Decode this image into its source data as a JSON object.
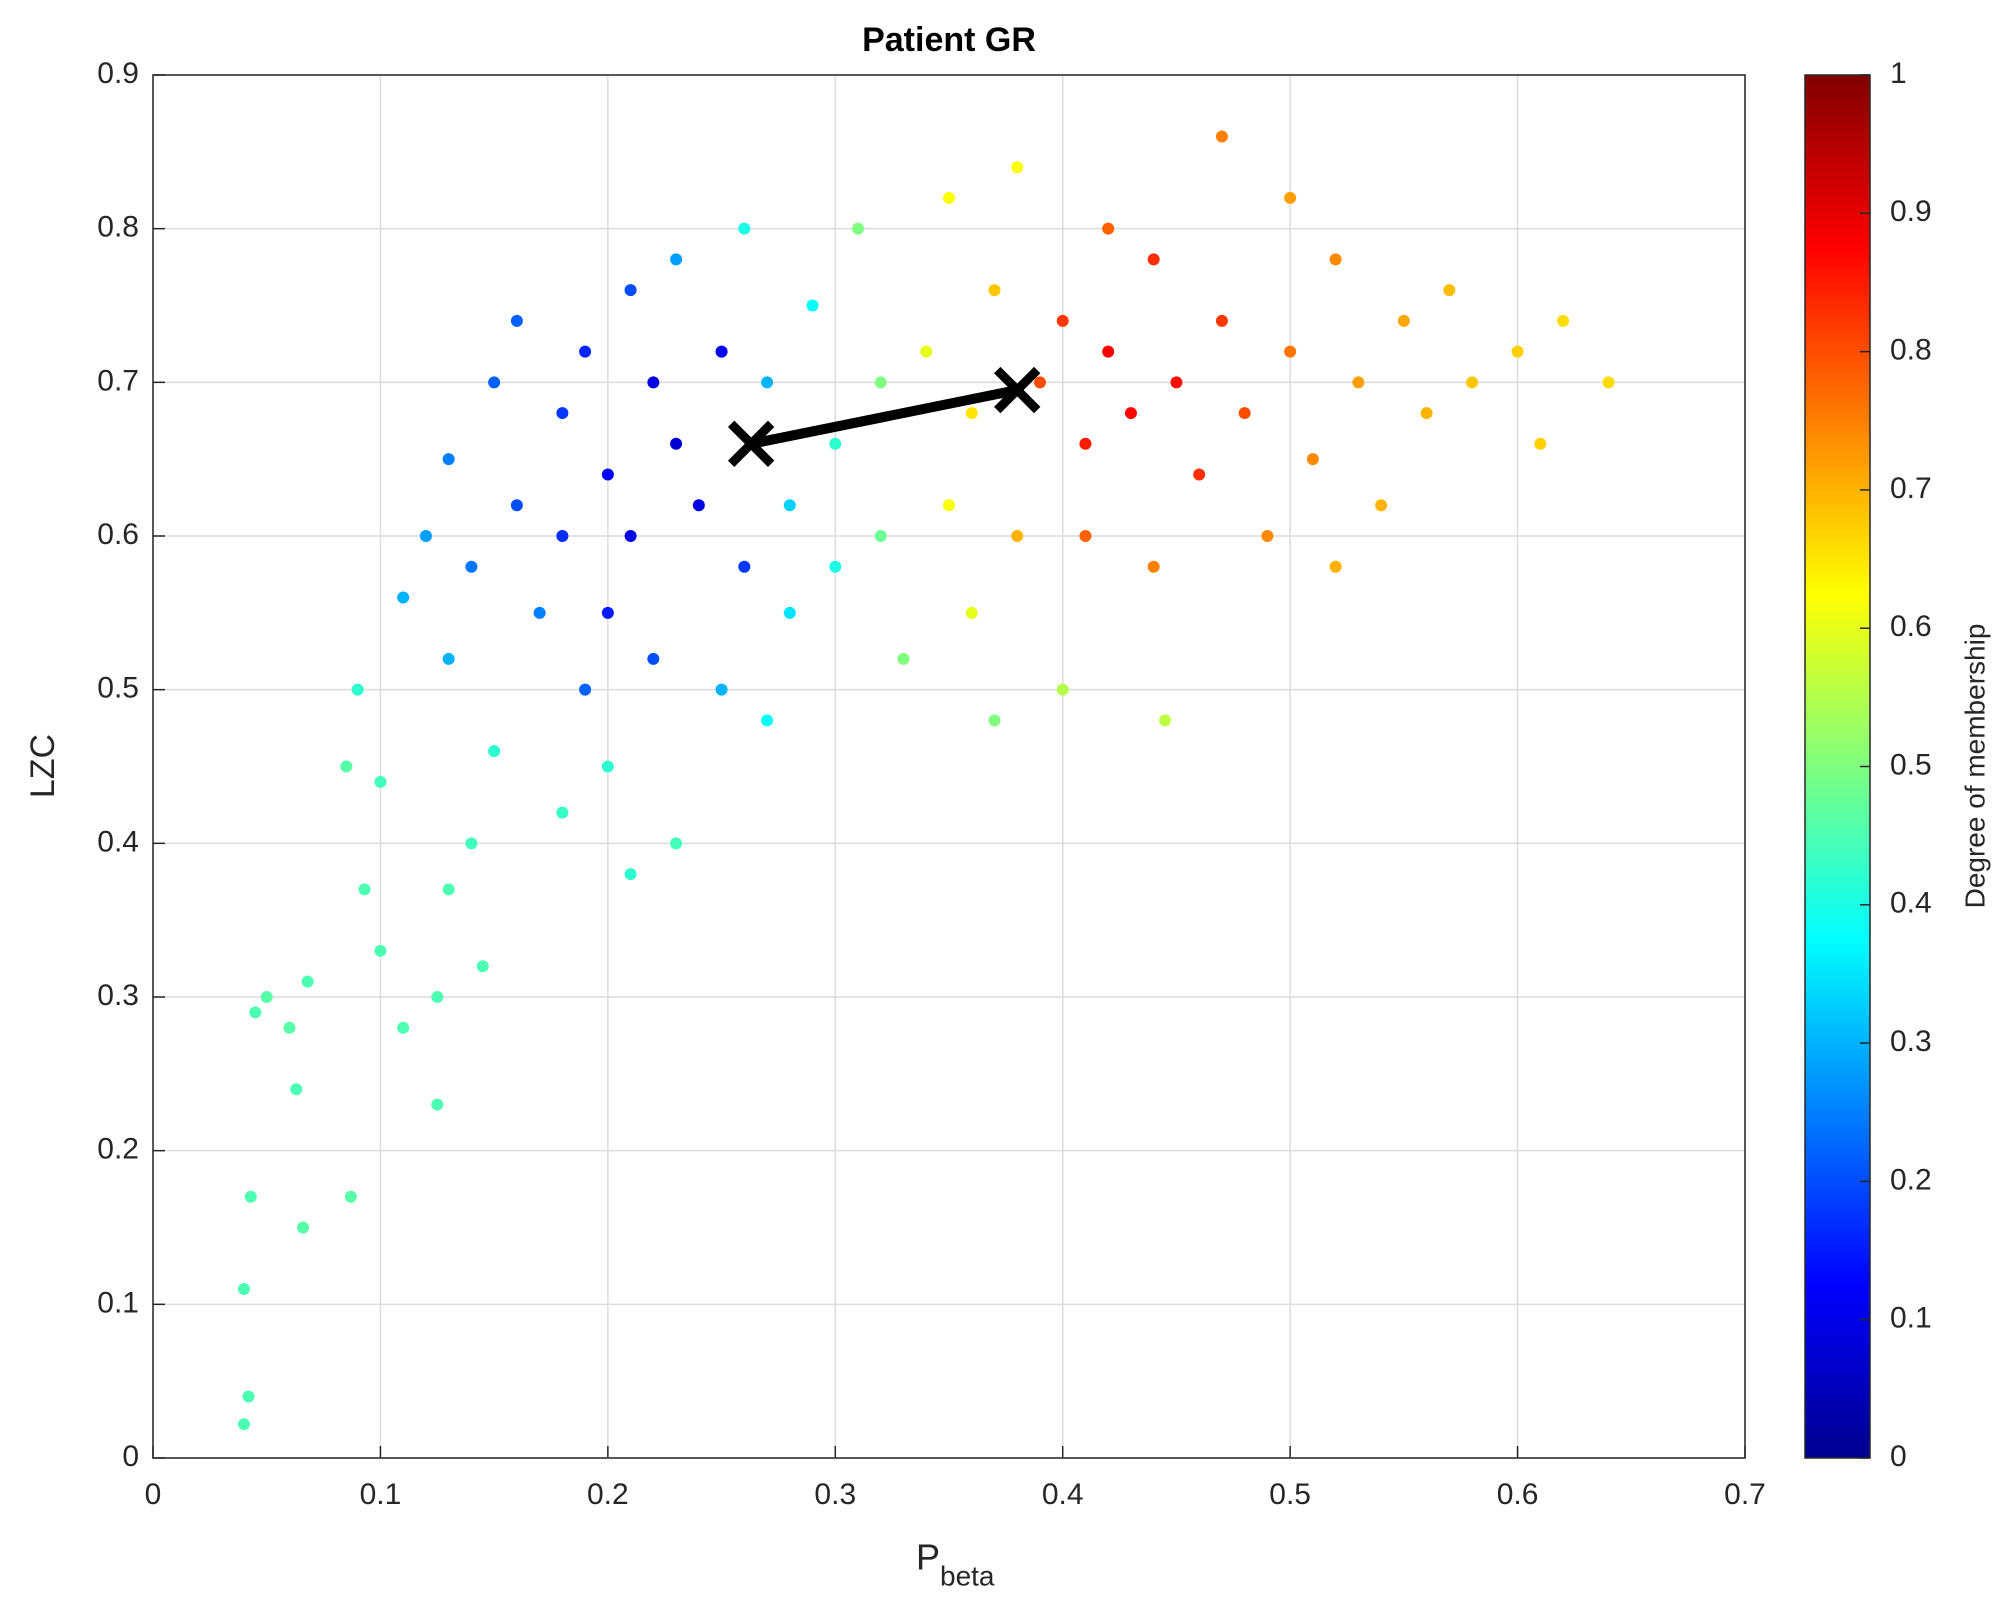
{
  "chart_data": {
    "type": "scatter",
    "title": "Patient GR",
    "x_label": "P",
    "x_label_sub": "beta",
    "y_label": "LZC",
    "xlim": [
      0,
      0.7
    ],
    "xticks": [
      0,
      0.1,
      0.2,
      0.3,
      0.4,
      0.5,
      0.6,
      0.7
    ],
    "ylim": [
      0,
      0.9
    ],
    "yticks": [
      0,
      0.1,
      0.2,
      0.3,
      0.4,
      0.5,
      0.6,
      0.7,
      0.8,
      0.9
    ],
    "grid": true,
    "colormap": "jet",
    "colorbar_label": "Degree of membership",
    "clim": [
      0,
      1
    ],
    "cticks": [
      0,
      0.1,
      0.2,
      0.3,
      0.4,
      0.5,
      0.6,
      0.7,
      0.8,
      0.9,
      1
    ],
    "x": [
      0.12,
      0.13,
      0.15,
      0.16,
      0.17,
      0.18,
      0.19,
      0.2,
      0.21,
      0.22,
      0.23,
      0.24,
      0.2,
      0.22,
      0.25,
      0.26,
      0.18,
      0.14,
      0.16,
      0.21,
      0.23,
      0.11,
      0.13,
      0.19,
      0.25,
      0.27,
      0.28,
      0.28,
      0.29,
      0.3,
      0.3,
      0.31,
      0.32,
      0.32,
      0.33,
      0.26,
      0.27,
      0.34,
      0.35,
      0.35,
      0.36,
      0.37,
      0.36,
      0.38,
      0.38,
      0.39,
      0.4,
      0.41,
      0.42,
      0.43,
      0.44,
      0.45,
      0.46,
      0.47,
      0.42,
      0.41,
      0.44,
      0.48,
      0.5,
      0.51,
      0.52,
      0.53,
      0.54,
      0.55,
      0.56,
      0.57,
      0.58,
      0.6,
      0.61,
      0.62,
      0.64,
      0.49,
      0.5,
      0.47,
      0.52,
      0.04,
      0.042,
      0.043,
      0.045,
      0.05,
      0.06,
      0.063,
      0.066,
      0.068,
      0.04,
      0.087,
      0.093,
      0.1,
      0.11,
      0.125,
      0.125,
      0.13,
      0.145,
      0.14,
      0.085,
      0.09,
      0.1,
      0.15,
      0.18,
      0.2,
      0.21,
      0.23,
      0.445,
      0.37,
      0.4
    ],
    "values": [
      0.6,
      0.65,
      0.7,
      0.62,
      0.55,
      0.68,
      0.72,
      0.64,
      0.6,
      0.7,
      0.66,
      0.62,
      0.55,
      0.52,
      0.72,
      0.58,
      0.6,
      0.58,
      0.74,
      0.76,
      0.78,
      0.56,
      0.52,
      0.5,
      0.5,
      0.7,
      0.62,
      0.55,
      0.75,
      0.66,
      0.58,
      0.8,
      0.7,
      0.6,
      0.52,
      0.8,
      0.48,
      0.72,
      0.62,
      0.82,
      0.55,
      0.76,
      0.68,
      0.6,
      0.84,
      0.7,
      0.74,
      0.66,
      0.72,
      0.68,
      0.78,
      0.7,
      0.64,
      0.74,
      0.8,
      0.6,
      0.58,
      0.68,
      0.72,
      0.65,
      0.78,
      0.7,
      0.62,
      0.74,
      0.68,
      0.76,
      0.7,
      0.72,
      0.66,
      0.74,
      0.7,
      0.6,
      0.82,
      0.86,
      0.58,
      0.11,
      0.04,
      0.17,
      0.29,
      0.3,
      0.28,
      0.24,
      0.15,
      0.31,
      0.022,
      0.17,
      0.37,
      0.33,
      0.28,
      0.23,
      0.3,
      0.37,
      0.32,
      0.4,
      0.45,
      0.5,
      0.44,
      0.46,
      0.42,
      0.45,
      0.38,
      0.4,
      0.48,
      0.48,
      0.5
    ],
    "membership": [
      0.28,
      0.25,
      0.22,
      0.2,
      0.25,
      0.18,
      0.16,
      0.12,
      0.1,
      0.1,
      0.08,
      0.1,
      0.15,
      0.2,
      0.12,
      0.18,
      0.17,
      0.24,
      0.22,
      0.2,
      0.28,
      0.3,
      0.3,
      0.22,
      0.3,
      0.3,
      0.33,
      0.35,
      0.38,
      0.42,
      0.4,
      0.5,
      0.5,
      0.48,
      0.5,
      0.4,
      0.38,
      0.6,
      0.62,
      0.62,
      0.6,
      0.68,
      0.65,
      0.7,
      0.62,
      0.8,
      0.82,
      0.85,
      0.88,
      0.87,
      0.83,
      0.86,
      0.83,
      0.82,
      0.78,
      0.78,
      0.75,
      0.8,
      0.76,
      0.74,
      0.74,
      0.72,
      0.7,
      0.71,
      0.7,
      0.69,
      0.68,
      0.67,
      0.67,
      0.66,
      0.66,
      0.74,
      0.72,
      0.75,
      0.7,
      0.45,
      0.45,
      0.45,
      0.45,
      0.46,
      0.46,
      0.45,
      0.46,
      0.45,
      0.45,
      0.46,
      0.45,
      0.45,
      0.45,
      0.45,
      0.45,
      0.45,
      0.45,
      0.44,
      0.46,
      0.42,
      0.44,
      0.42,
      0.43,
      0.42,
      0.42,
      0.44,
      0.56,
      0.5,
      0.55
    ],
    "centroids": {
      "x": [
        0.263,
        0.38
      ],
      "values": [
        0.66,
        0.695
      ],
      "color": "#000000"
    }
  }
}
